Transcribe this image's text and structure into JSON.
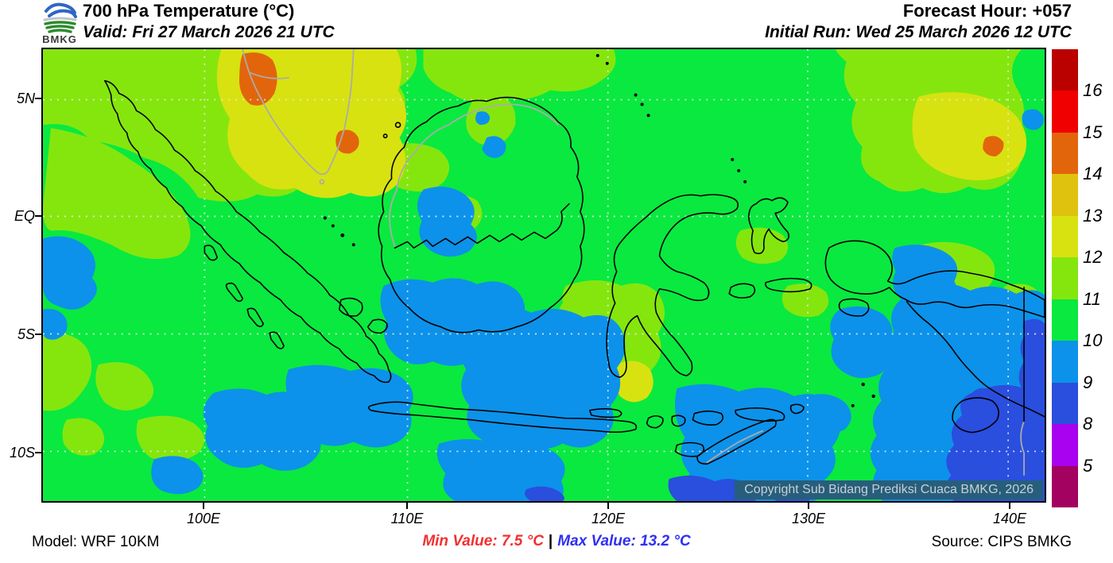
{
  "header": {
    "logo_text": "BMKG",
    "title": "700 hPa Temperature (°C)",
    "valid": "Valid: Fri 27 March 2026 21 UTC",
    "forecast_hour": "Forecast Hour: +057",
    "initial_run": "Initial Run: Wed 25 March 2026 12 UTC"
  },
  "axes": {
    "lat": [
      "5N",
      "EQ",
      "5S",
      "10S"
    ],
    "lon": [
      "100E",
      "110E",
      "120E",
      "130E",
      "140E"
    ]
  },
  "colorbar": {
    "values": [
      "16",
      "15",
      "14",
      "13",
      "12",
      "11",
      "10",
      "9",
      "8",
      "5"
    ],
    "cell_colors": [
      "darkred",
      "red",
      "orange",
      "amber",
      "yellow",
      "chartreuse",
      "green",
      "dodger",
      "royal",
      "purple",
      "crimson"
    ]
  },
  "map": {
    "copyright": "Copyright Sub Bidang Prediksi Cuaca BMKG, 2026"
  },
  "footer": {
    "model": "Model: WRF 10KM",
    "min_label": "Min Value: 7.5 °C",
    "separator": "|",
    "max_label": "Max Value: 13.2 °C",
    "source": "Source: CIPS BMKG"
  },
  "colors": {
    "darkred": "#BB0000",
    "red": "#F00000",
    "orange": "#E2650C",
    "amber": "#DFC20D",
    "yellow": "#D8E210",
    "chartreuse": "#85E60E",
    "green": "#0AE93F",
    "dodger": "#0C92EA",
    "royal": "#2A4EDE",
    "purple": "#A802F0",
    "crimson": "#A30260",
    "min_text": "#F23030",
    "max_text": "#3030F2",
    "copyright_bg": "#275E7C",
    "copyright_fg": "#CAD0D4"
  }
}
